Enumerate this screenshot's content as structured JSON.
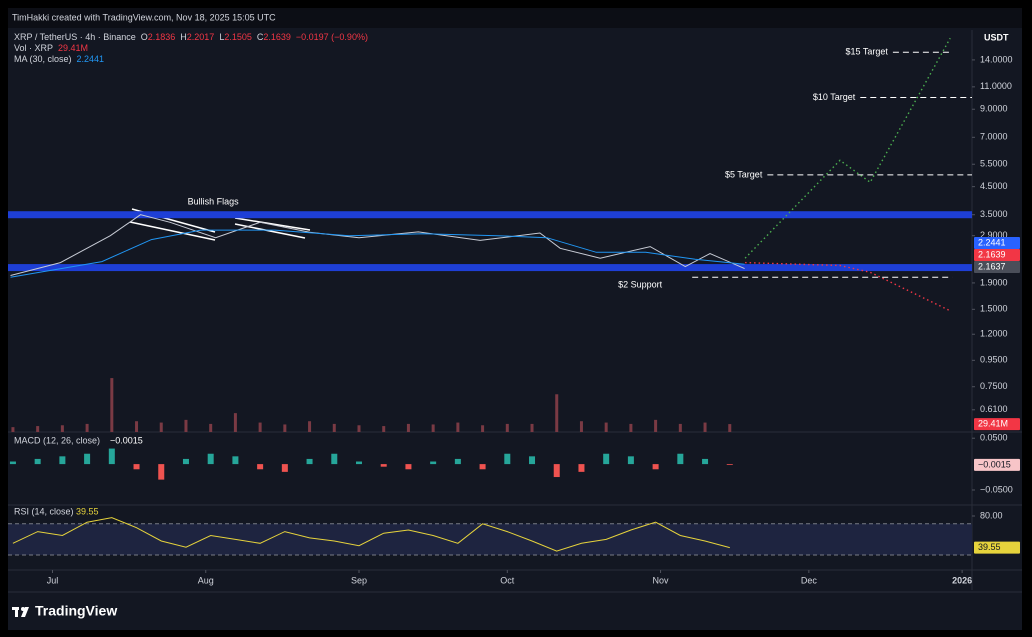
{
  "header": "TimHakki created with TradingView.com, Nov 18, 2025 15:05 UTC",
  "footer": "TradingView",
  "chart_data": [
    {
      "type": "line",
      "title": "XRP / TetherUS · 4h · Binance",
      "ohlc": [
        {
          "label": "O",
          "value": 2.1836
        },
        {
          "label": "H",
          "value": 2.2017
        },
        {
          "label": "L",
          "value": 2.1505
        },
        {
          "label": "C",
          "value": 2.1639
        }
      ],
      "change": "−0.0197 (−0.90%)",
      "unit": "USDT",
      "log": true,
      "grid": false,
      "xlim": [
        -9,
        186
      ],
      "xticks": [
        {
          "value": 0,
          "label": "Jul"
        },
        {
          "value": 31,
          "label": "Aug"
        },
        {
          "value": 62,
          "label": "Sep"
        },
        {
          "value": 92,
          "label": "Oct"
        },
        {
          "value": 123,
          "label": "Nov"
        },
        {
          "value": 153,
          "label": "Dec"
        },
        {
          "value": 184,
          "label": "2026"
        }
      ],
      "ylim": [
        0.5,
        18.3
      ],
      "yticks": [
        {
          "value": 14,
          "label": "14.0000"
        },
        {
          "value": 11,
          "label": "11.0000"
        },
        {
          "value": 9,
          "label": "9.0000"
        },
        {
          "value": 7,
          "label": "7.0000"
        },
        {
          "value": 5.5,
          "label": "5.5000"
        },
        {
          "value": 4.5,
          "label": "4.5000"
        },
        {
          "value": 3.5,
          "label": "3.5000"
        },
        {
          "value": 2.9,
          "label": "2.9000"
        },
        {
          "value": 1.9,
          "label": "1.9000"
        },
        {
          "value": 1.5,
          "label": "1.5000"
        },
        {
          "value": 1.2,
          "label": "1.2000"
        },
        {
          "value": 0.95,
          "label": "0.9500"
        },
        {
          "value": 0.75,
          "label": "0.7500"
        },
        {
          "value": 0.61,
          "label": "0.6100"
        }
      ],
      "series": [
        {
          "color": "#c8ccd6",
          "x": [
            -8.5,
            1.6,
            11.7,
            17.8,
            23.8,
            33,
            42,
            52,
            62,
            74,
            86.5,
            98.6,
            102.7,
            110.8,
            120.9,
            128,
            133,
            140
          ],
          "values": [
            2.03,
            2.28,
            2.9,
            3.5,
            3.27,
            2.85,
            3.27,
            2.99,
            2.85,
            3.0,
            2.78,
            2.97,
            2.59,
            2.37,
            2.63,
            2.2,
            2.47,
            2.16
          ]
        },
        {
          "name": "MA (30, close)",
          "color": "#2196f3",
          "x": [
            -8.5,
            10,
            20,
            30,
            45,
            60,
            75,
            90,
            100,
            110,
            120,
            130,
            140
          ],
          "values": [
            2.0,
            2.3,
            2.8,
            3.05,
            3.05,
            2.9,
            2.95,
            2.9,
            2.85,
            2.5,
            2.5,
            2.35,
            2.2441
          ]
        },
        {
          "color": "#4caf50",
          "dotted": true,
          "x": [
            140.1,
            159.3,
            165.4,
            181.6
          ],
          "values": [
            2.37,
            5.7,
            4.68,
            17.0
          ]
        },
        {
          "color": "#f23645",
          "dotted": true,
          "x": [
            140.1,
            159.3,
            165.4,
            181.6
          ],
          "values": [
            2.28,
            2.22,
            2.09,
            1.48
          ]
        }
      ],
      "zones": [
        3.5,
        2.18
      ],
      "zone_color": "#1e3fd6",
      "annotations": [
        {
          "text": "$15 Target",
          "value": 15,
          "x": [
            170,
            182
          ],
          "placement": "left"
        },
        {
          "text": "$10 Target",
          "value": 10,
          "x": [
            163.4,
            186
          ],
          "placement": "left"
        },
        {
          "text": "$5 Target",
          "value": 5,
          "x": [
            144.6,
            186
          ],
          "placement": "left"
        },
        {
          "text": "$2 Support",
          "value": 2,
          "x": [
            129.4,
            182
          ],
          "placement": "below"
        }
      ],
      "flag_label": {
        "text": "Bullish Flags",
        "x": 32.5,
        "value": 3.91
      },
      "last_labels": [
        {
          "value": 2.2441,
          "color": "#2962ff"
        },
        {
          "value": 2.1639,
          "color": "#f23645"
        },
        {
          "value": 2.1637,
          "color": "#4a4e59"
        }
      ],
      "volume": {
        "title": "Vol · XRP",
        "color": "#7a3a44",
        "ylim": [
          0,
          230000000
        ],
        "x": [
          -8,
          -3,
          2,
          7,
          12,
          17,
          22,
          27,
          32,
          37,
          42,
          47,
          52,
          57,
          62,
          67,
          72,
          77,
          82,
          87,
          92,
          97,
          102,
          107,
          112,
          117,
          122,
          127,
          132,
          137
        ],
        "values": [
          18000000,
          22000000,
          25000000,
          30000000,
          200000000,
          40000000,
          35000000,
          45000000,
          30000000,
          70000000,
          35000000,
          28000000,
          40000000,
          30000000,
          25000000,
          22000000,
          30000000,
          28000000,
          35000000,
          25000000,
          30000000,
          30000000,
          140000000,
          40000000,
          35000000,
          30000000,
          45000000,
          30000000,
          35000000,
          29410000
        ],
        "last": {
          "value": 29410000,
          "label": "29.41M"
        }
      }
    },
    {
      "type": "bar",
      "title": "MACD (12, 26, close)",
      "ylim": [
        -0.079,
        0.062
      ],
      "yticks": [
        {
          "value": 0.05,
          "label": "0.0500"
        },
        {
          "value": -0.05,
          "label": "−0.0500"
        }
      ],
      "up_color": "#26a69a",
      "down_color": "#ef5350",
      "x": [
        -8,
        -3,
        2,
        7,
        12,
        17,
        22,
        27,
        32,
        37,
        42,
        47,
        52,
        57,
        62,
        67,
        72,
        77,
        82,
        87,
        92,
        97,
        102,
        107,
        112,
        117,
        122,
        127,
        132,
        137
      ],
      "values": [
        0.005,
        0.01,
        0.015,
        0.02,
        0.03,
        -0.01,
        -0.03,
        0.01,
        0.02,
        0.015,
        -0.01,
        -0.015,
        0.01,
        0.02,
        0.005,
        -0.005,
        -0.01,
        0.005,
        0.01,
        -0.01,
        0.02,
        0.015,
        -0.025,
        -0.015,
        0.02,
        0.015,
        -0.01,
        0.02,
        0.01,
        -0.0015
      ],
      "last": {
        "value": -0.0015,
        "label": "−0.0015"
      }
    },
    {
      "type": "line",
      "title": "RSI (14, close)",
      "ylim": [
        10.8,
        94.1
      ],
      "yticks": [
        {
          "value": 80,
          "label": "80.00"
        }
      ],
      "levels": [
        70,
        30
      ],
      "color": "#e6d33c",
      "x": [
        -8,
        -3,
        2,
        7,
        12,
        17,
        22,
        27,
        32,
        37,
        42,
        47,
        52,
        57,
        62,
        67,
        72,
        77,
        82,
        87,
        92,
        97,
        102,
        107,
        112,
        117,
        122,
        127,
        132,
        137
      ],
      "values": [
        45,
        60,
        55,
        72,
        78,
        65,
        48,
        40,
        55,
        50,
        45,
        60,
        52,
        48,
        42,
        58,
        62,
        55,
        45,
        70,
        60,
        48,
        35,
        45,
        50,
        62,
        72,
        55,
        48,
        39.55
      ],
      "last": 39.55
    }
  ]
}
